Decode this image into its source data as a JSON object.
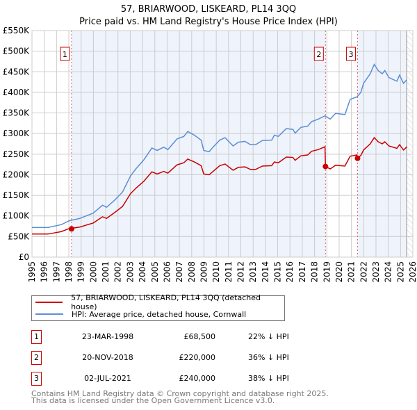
{
  "chart_data": {
    "type": "line",
    "title": "57, BRIARWOOD, LISKEARD, PL14 3QQ",
    "subtitle": "Price paid vs. HM Land Registry's House Price Index (HPI)",
    "xlim": [
      1995,
      2026
    ],
    "ylim": [
      0,
      550000
    ],
    "x_ticks": [
      "1995",
      "1996",
      "1997",
      "1998",
      "1999",
      "2000",
      "2001",
      "2002",
      "2003",
      "2004",
      "2005",
      "2006",
      "2007",
      "2008",
      "2009",
      "2010",
      "2011",
      "2012",
      "2013",
      "2014",
      "2015",
      "2016",
      "2017",
      "2018",
      "2019",
      "2020",
      "2021",
      "2022",
      "2023",
      "2024",
      "2025",
      "2026"
    ],
    "y_ticks": [
      {
        "v": 0,
        "label": "£0"
      },
      {
        "v": 50000,
        "label": "£50K"
      },
      {
        "v": 100000,
        "label": "£100K"
      },
      {
        "v": 150000,
        "label": "£150K"
      },
      {
        "v": 200000,
        "label": "£200K"
      },
      {
        "v": 250000,
        "label": "£250K"
      },
      {
        "v": 300000,
        "label": "£300K"
      },
      {
        "v": 350000,
        "label": "£350K"
      },
      {
        "v": 400000,
        "label": "£400K"
      },
      {
        "v": 450000,
        "label": "£450K"
      },
      {
        "v": 500000,
        "label": "£500K"
      },
      {
        "v": 550000,
        "label": "£550K"
      }
    ],
    "grid": true,
    "data_end": 2025.5,
    "series": [
      {
        "name": "57, BRIARWOOD, LISKEARD, PL14 3QQ (detached house)",
        "color": "#cc0000",
        "x": [
          1995.0,
          1996.3,
          1997.4,
          1998.0,
          1998.9,
          2000.0,
          2000.74,
          2001.07,
          2001.72,
          2002.37,
          2003.02,
          2003.45,
          2004.1,
          2004.76,
          2005.19,
          2005.73,
          2006.06,
          2006.81,
          2007.36,
          2007.68,
          2008.22,
          2008.77,
          2008.98,
          2009.42,
          2009.74,
          2010.28,
          2010.72,
          2011.37,
          2011.8,
          2012.34,
          2012.78,
          2013.21,
          2013.75,
          2014.51,
          2014.73,
          2015.05,
          2015.7,
          2016.24,
          2016.42,
          2016.89,
          2017.44,
          2017.76,
          2018.3,
          2018.85,
          2018.89,
          2019.28,
          2019.71,
          2020.47,
          2020.9,
          2021.45,
          2021.5,
          2021.77,
          2021.99,
          2022.53,
          2022.86,
          2023.18,
          2023.51,
          2023.72,
          2024.05,
          2024.7,
          2024.92,
          2025.24,
          2025.52
        ],
        "y": [
          56000,
          56000,
          62000,
          69000,
          73000,
          83000,
          98000,
          94000,
          108000,
          123000,
          154000,
          167000,
          184000,
          207000,
          202000,
          208000,
          204000,
          224000,
          229000,
          238000,
          231000,
          222000,
          202000,
          200000,
          208000,
          222000,
          226000,
          211000,
          218000,
          219000,
          213000,
          213000,
          221000,
          222000,
          231000,
          229000,
          243000,
          242000,
          235000,
          246000,
          248000,
          257000,
          261000,
          268000,
          220000,
          214000,
          223000,
          221000,
          245000,
          248000,
          240000,
          247000,
          260000,
          275000,
          290000,
          280000,
          275000,
          280000,
          270000,
          264000,
          273000,
          260000,
          268000
        ]
      },
      {
        "name": "HPI: Average price, detached house, Cornwall",
        "color": "#5b8fd4",
        "x": [
          1995.0,
          1996.3,
          1997.4,
          1998.0,
          1998.9,
          2000.0,
          2000.74,
          2001.07,
          2001.72,
          2002.37,
          2003.02,
          2003.45,
          2004.1,
          2004.76,
          2005.19,
          2005.73,
          2006.06,
          2006.81,
          2007.36,
          2007.68,
          2008.22,
          2008.77,
          2008.98,
          2009.42,
          2009.74,
          2010.28,
          2010.72,
          2011.37,
          2011.8,
          2012.34,
          2012.78,
          2013.21,
          2013.75,
          2014.51,
          2014.73,
          2015.05,
          2015.7,
          2016.24,
          2016.42,
          2016.89,
          2017.44,
          2017.76,
          2018.3,
          2018.85,
          2019.28,
          2019.71,
          2020.47,
          2020.9,
          2021.45,
          2021.77,
          2021.99,
          2022.53,
          2022.86,
          2023.18,
          2023.51,
          2023.72,
          2024.05,
          2024.7,
          2024.92,
          2025.24,
          2025.52
        ],
        "y": [
          72000,
          72000,
          79000,
          88000,
          94000,
          107000,
          126000,
          121000,
          138000,
          158000,
          197000,
          214000,
          236000,
          265000,
          259000,
          267000,
          261000,
          287000,
          293000,
          305000,
          296000,
          284000,
          259000,
          256000,
          267000,
          284000,
          290000,
          270000,
          279000,
          281000,
          273000,
          273000,
          283000,
          284000,
          296000,
          293000,
          312000,
          310000,
          301000,
          315000,
          318000,
          329000,
          335000,
          343000,
          335000,
          349000,
          346000,
          383000,
          389000,
          400000,
          422000,
          445000,
          468000,
          453000,
          445000,
          453000,
          436000,
          427000,
          442000,
          422000,
          431000
        ]
      }
    ],
    "sales": [
      {
        "id": "1",
        "x": 1998.22,
        "price": 68500,
        "date": "23-MAR-1998",
        "price_label": "£68,500",
        "diff": "22% ↓ HPI"
      },
      {
        "id": "2",
        "x": 2018.89,
        "price": 220000,
        "date": "20-NOV-2018",
        "price_label": "£220,000",
        "diff": "36% ↓ HPI"
      },
      {
        "id": "3",
        "x": 2021.5,
        "price": 240000,
        "date": "02-JUL-2021",
        "price_label": "£240,000",
        "diff": "38% ↓ HPI"
      }
    ]
  },
  "footer": [
    "Contains HM Land Registry data © Crown copyright and database right 2025.",
    "This data is licensed under the Open Government Licence v3.0."
  ]
}
